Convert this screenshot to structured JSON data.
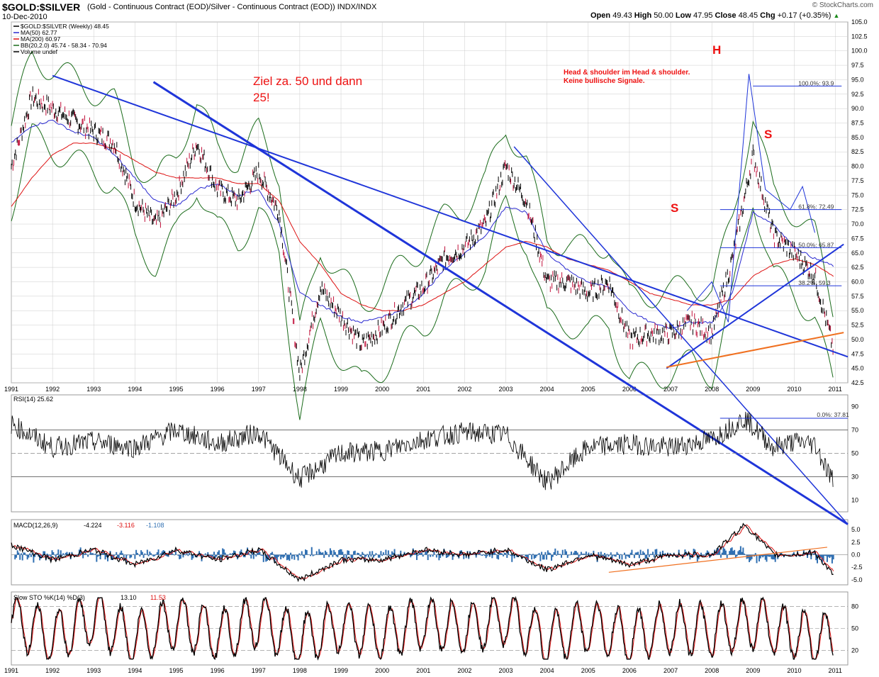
{
  "header": {
    "symbol": "$GOLD:$SILVER",
    "subtitle": "(Gold - Continuous Contract (EOD)/Silver - Continuous Contract (EOD)) INDX/INDX",
    "date": "10-Dec-2010",
    "watermark": "© StockCharts.com",
    "ohlc": {
      "open_label": "Open",
      "open": "49.43",
      "high_label": "High",
      "high": "50.00",
      "low_label": "Low",
      "low": "47.95",
      "close_label": "Close",
      "close": "48.45",
      "chg_label": "Chg",
      "chg": "+0.17 (+0.35%)",
      "chg_arrow": "▲"
    }
  },
  "colors": {
    "price": "#000000",
    "ma50": "#2a2ad0",
    "ma200": "#dd1111",
    "bb": "#1a6b1a",
    "trend": "#1f35d9",
    "orange": "#f07020",
    "annotation": "#e11",
    "macd_hist": "#2f6fb2",
    "rsi_fill": "#8a5050",
    "grid": "#cccccc"
  },
  "chart_data": [
    {
      "panel": "price",
      "type": "line",
      "legend": [
        {
          "text": "$GOLD:$SILVER (Weekly) 48.45",
          "color": "#000000"
        },
        {
          "text": "MA(50) 62.77",
          "color": "#2a2ad0"
        },
        {
          "text": "MA(200) 60.97",
          "color": "#dd1111"
        },
        {
          "text": "BB(20,2.0) 45.74 - 58.34 - 70.94",
          "color": "#1a6b1a"
        },
        {
          "text": "Volume undef",
          "color": "#000000"
        }
      ],
      "x_ticks": [
        "1991",
        "1992",
        "1993",
        "1994",
        "1995",
        "1996",
        "1997",
        "1998",
        "1999",
        "2000",
        "2001",
        "2002",
        "2003",
        "2004",
        "2005",
        "2006",
        "2007",
        "2008",
        "2009",
        "2010",
        "2011"
      ],
      "y_ticks": [
        "42.5",
        "45.0",
        "47.5",
        "50.0",
        "52.5",
        "55.0",
        "57.5",
        "60.0",
        "62.5",
        "65.0",
        "67.5",
        "70.0",
        "72.5",
        "75.0",
        "77.5",
        "80.0",
        "82.5",
        "85.0",
        "87.5",
        "90.0",
        "92.5",
        "95.0",
        "97.5",
        "100.0",
        "102.5",
        "105.0"
      ],
      "ylim": [
        42.5,
        105.0
      ],
      "x": [
        1991.0,
        1991.5,
        1992.0,
        1992.5,
        1993.0,
        1993.5,
        1994.0,
        1994.5,
        1995.0,
        1995.5,
        1996.0,
        1996.5,
        1997.0,
        1997.5,
        1998.0,
        1998.5,
        1999.0,
        1999.5,
        2000.0,
        2000.5,
        2001.0,
        2001.5,
        2002.0,
        2002.5,
        2003.0,
        2003.5,
        2004.0,
        2004.5,
        2005.0,
        2005.5,
        2006.0,
        2006.5,
        2007.0,
        2007.5,
        2008.0,
        2008.5,
        2009.0,
        2009.5,
        2010.0,
        2010.5,
        2010.95
      ],
      "series": [
        {
          "name": "$GOLD:$SILVER",
          "values": [
            80,
            92,
            90,
            88,
            86,
            84,
            74,
            70,
            75,
            84,
            76,
            74,
            79,
            72,
            44,
            59,
            54,
            49,
            52,
            56,
            59,
            64,
            66,
            70,
            80,
            74,
            60,
            60,
            58,
            60,
            50,
            51,
            51,
            53,
            51,
            64,
            82,
            68,
            65,
            61,
            48.45
          ]
        },
        {
          "name": "MA(50)",
          "values": [
            84,
            87,
            88,
            86,
            85,
            82,
            78,
            74,
            73,
            76,
            77,
            75,
            76,
            70,
            58,
            56,
            54,
            53,
            54,
            55,
            58,
            62,
            65,
            68,
            73,
            72,
            65,
            62,
            60,
            59,
            55,
            53,
            52,
            53,
            53,
            58,
            72,
            70,
            66,
            64,
            62.77
          ]
        },
        {
          "name": "MA(200)",
          "values": [
            73,
            78,
            82,
            84,
            84,
            83,
            81,
            79,
            78,
            78,
            78,
            77,
            77,
            74,
            67,
            63,
            58,
            56,
            55,
            55,
            56,
            58,
            60,
            63,
            66,
            67,
            66,
            64,
            63,
            62,
            60,
            58,
            57,
            56,
            56,
            57,
            61,
            63,
            64,
            63,
            60.97
          ]
        }
      ],
      "x_range": [
        1991.0,
        2011.3
      ],
      "annotations": [
        "Ziel za. 50 und dann",
        "25!",
        "H",
        "S",
        "S",
        "Head & shoulder im Head & shoulder.",
        "Keine bullische Signale."
      ],
      "fib_labels": [
        "100.0%: 93.9",
        "61.8%: 72.49",
        "50.0%: 65.87",
        "38.2%: 59.3"
      ]
    },
    {
      "panel": "rsi",
      "type": "line",
      "legend": "RSI(14) 25.62",
      "y_ticks": [
        "10",
        "30",
        "50",
        "70",
        "90"
      ],
      "ylim": [
        0,
        100
      ],
      "x": [
        1991.0,
        1992.0,
        1993.0,
        1994.0,
        1995.0,
        1996.0,
        1997.0,
        1998.0,
        1999.0,
        2000.0,
        2001.0,
        2002.0,
        2003.0,
        2004.0,
        2005.0,
        2006.0,
        2007.0,
        2008.0,
        2008.8,
        2009.5,
        2010.0,
        2010.5,
        2010.95
      ],
      "values": [
        75,
        55,
        60,
        55,
        70,
        58,
        68,
        28,
        50,
        52,
        62,
        68,
        66,
        25,
        55,
        58,
        55,
        62,
        80,
        55,
        60,
        58,
        25.62
      ],
      "fib_label": "0.0%: 37.81"
    },
    {
      "panel": "macd",
      "type": "line",
      "legend": {
        "text": "MACD(12,26,9)",
        "macd": "-4.224",
        "signal": "-3.116",
        "hist": "-1.108"
      },
      "y_ticks": [
        "-5.0",
        "-2.5",
        "0.0",
        "2.5",
        "5.0"
      ],
      "ylim": [
        -6,
        7
      ],
      "x": [
        1991.0,
        1992.0,
        1993.0,
        1994.0,
        1995.0,
        1996.0,
        1997.0,
        1998.0,
        1999.0,
        2000.0,
        2001.0,
        2002.0,
        2003.0,
        2004.0,
        2005.0,
        2006.0,
        2007.0,
        2008.0,
        2008.8,
        2009.5,
        2010.0,
        2010.5,
        2010.95
      ],
      "values": [
        2,
        -1,
        1,
        -2,
        1,
        -1,
        1,
        -5,
        -1,
        -1,
        1,
        0,
        1,
        -3,
        0,
        -2,
        0,
        0,
        6,
        0,
        0,
        0.5,
        -4.224
      ]
    },
    {
      "panel": "sto",
      "type": "line",
      "legend": {
        "text": "Slow STO %K(14) %D(3)",
        "k": "13.10",
        "d": "11.53"
      },
      "y_ticks": [
        "20",
        "50",
        "80"
      ],
      "ylim": [
        0,
        100
      ],
      "x": [
        1991.0,
        1992.0,
        1993.0,
        1994.0,
        1995.0,
        1996.0,
        1997.0,
        1998.0,
        1999.0,
        2000.0,
        2001.0,
        2002.0,
        2003.0,
        2004.0,
        2005.0,
        2006.0,
        2007.0,
        2008.0,
        2009.0,
        2010.0,
        2010.95
      ],
      "values": [
        80,
        20,
        85,
        15,
        75,
        25,
        80,
        10,
        60,
        30,
        70,
        50,
        85,
        15,
        60,
        20,
        55,
        40,
        70,
        30,
        13.1
      ]
    }
  ]
}
